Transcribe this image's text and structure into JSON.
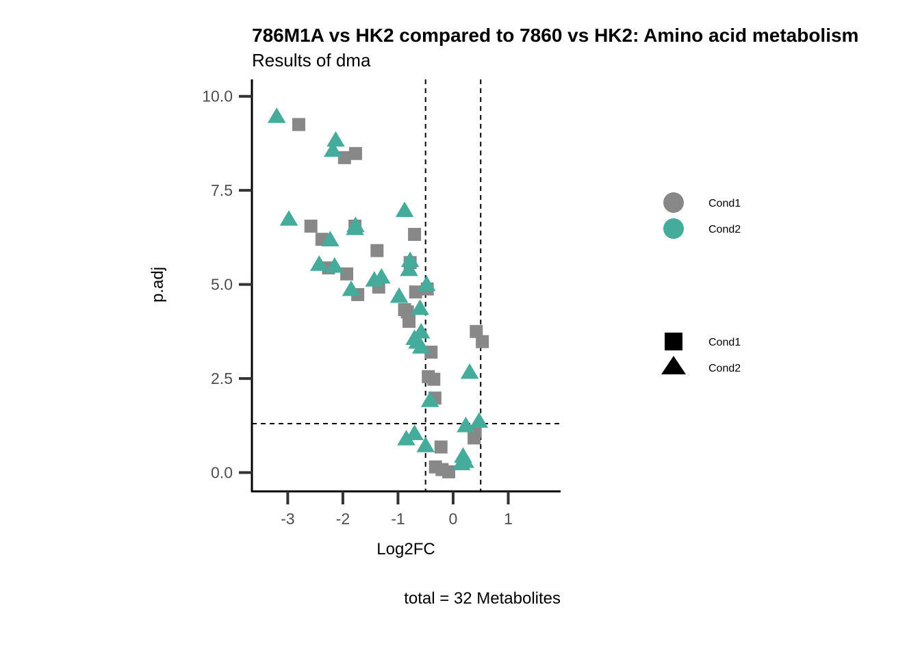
{
  "chart_data": {
    "type": "scatter",
    "title": "786M1A vs HK2 compared to 7860 vs HK2: Amino acid metabolism",
    "subtitle": "Results of dma",
    "xlabel": "Log2FC",
    "ylabel": "p.adj",
    "caption": "total = 32 Metabolites",
    "xlim": [
      -3.65,
      1.95
    ],
    "ylim": [
      -0.5,
      10.45
    ],
    "xticks": [
      -3,
      -2,
      -1,
      0,
      1
    ],
    "xtick_labels": [
      "-3",
      "-2",
      "-1",
      "0",
      "1"
    ],
    "yticks": [
      0,
      2.5,
      5,
      7.5,
      10
    ],
    "ytick_labels": [
      "0.0",
      "2.5",
      "5.0",
      "7.5",
      "10.0"
    ],
    "thresholds": {
      "x": [
        -0.5,
        0.5
      ],
      "y": [
        1.3
      ]
    },
    "colors": {
      "Cond1": "#888888",
      "Cond2": "#45ac9b"
    },
    "legend_color": {
      "entries": [
        "Cond1",
        "Cond2"
      ]
    },
    "legend_shape": {
      "entries": [
        "Cond1",
        "Cond2"
      ]
    },
    "series": [
      {
        "name": "Cond1",
        "shape": "square",
        "points": [
          [
            -2.8,
            9.25
          ],
          [
            -1.97,
            8.37
          ],
          [
            -1.77,
            8.48
          ],
          [
            -2.58,
            6.55
          ],
          [
            -2.38,
            6.2
          ],
          [
            -1.78,
            6.55
          ],
          [
            -0.7,
            6.33
          ],
          [
            -1.38,
            5.9
          ],
          [
            -0.78,
            5.58
          ],
          [
            -2.26,
            5.44
          ],
          [
            -1.93,
            5.28
          ],
          [
            -1.35,
            4.93
          ],
          [
            -1.73,
            4.73
          ],
          [
            -0.68,
            4.8
          ],
          [
            -0.47,
            4.88
          ],
          [
            -0.88,
            4.33
          ],
          [
            -0.83,
            4.27
          ],
          [
            -0.8,
            4.02
          ],
          [
            -0.4,
            3.2
          ],
          [
            -0.45,
            2.55
          ],
          [
            -0.35,
            2.48
          ],
          [
            -0.33,
            1.98
          ],
          [
            -0.22,
            0.68
          ],
          [
            -0.32,
            0.15
          ],
          [
            -0.2,
            0.08
          ],
          [
            -0.08,
            0.02
          ],
          [
            0.42,
            3.75
          ],
          [
            0.53,
            3.48
          ],
          [
            0.38,
            0.92
          ],
          [
            0.4,
            1.1
          ]
        ]
      },
      {
        "name": "Cond2",
        "shape": "triangle",
        "points": [
          [
            -3.2,
            9.45
          ],
          [
            -2.13,
            8.82
          ],
          [
            -2.18,
            8.55
          ],
          [
            -2.98,
            6.72
          ],
          [
            -1.77,
            6.55
          ],
          [
            -1.78,
            6.47
          ],
          [
            -2.23,
            6.17
          ],
          [
            -0.88,
            6.95
          ],
          [
            -0.78,
            5.62
          ],
          [
            -0.8,
            5.38
          ],
          [
            -2.43,
            5.52
          ],
          [
            -2.15,
            5.47
          ],
          [
            -1.43,
            5.1
          ],
          [
            -1.3,
            5.18
          ],
          [
            -1.85,
            4.85
          ],
          [
            -0.98,
            4.67
          ],
          [
            -0.48,
            4.98
          ],
          [
            -0.6,
            4.35
          ],
          [
            -0.58,
            3.72
          ],
          [
            -0.7,
            3.55
          ],
          [
            -0.65,
            3.45
          ],
          [
            -0.58,
            3.32
          ],
          [
            -0.42,
            1.9
          ],
          [
            0.3,
            2.65
          ],
          [
            0.47,
            1.35
          ],
          [
            0.23,
            1.23
          ],
          [
            -0.85,
            0.88
          ],
          [
            -0.7,
            1.02
          ],
          [
            -0.5,
            0.7
          ],
          [
            0.18,
            0.42
          ],
          [
            0.22,
            0.28
          ],
          [
            0.15,
            0.22
          ]
        ]
      }
    ]
  }
}
